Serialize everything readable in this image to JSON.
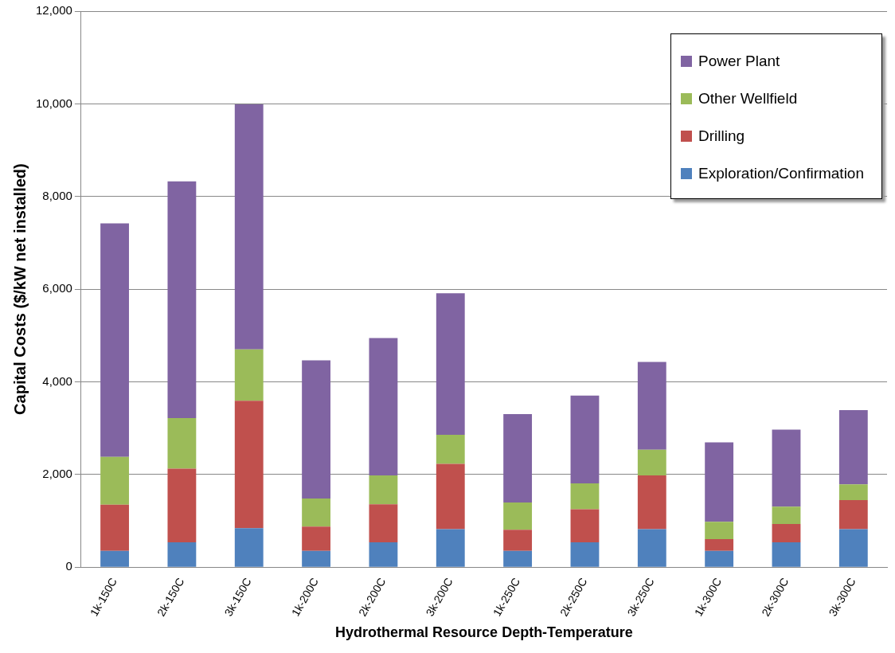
{
  "chart_data": {
    "type": "bar",
    "stacked": true,
    "xlabel": "Hydrothermal Resource Depth-Temperature",
    "ylabel": "Capital Costs ($/kW net installed)",
    "categories": [
      "1k-150C",
      "2k-150C",
      "3k-150C",
      "1k-200C",
      "2k-200C",
      "3k-200C",
      "1k-250C",
      "2k-250C",
      "3k-250C",
      "1k-300C",
      "2k-300C",
      "3k-300C"
    ],
    "series": [
      {
        "name": "Exploration/Confirmation",
        "color": "#4f81bd",
        "values": [
          350,
          536,
          840,
          350,
          536,
          820,
          350,
          536,
          820,
          350,
          536,
          820
        ]
      },
      {
        "name": "Drilling",
        "color": "#c0504d",
        "values": [
          1000,
          1590,
          2750,
          525,
          820,
          1410,
          455,
          715,
          1160,
          255,
          395,
          625
        ]
      },
      {
        "name": "Other Wellfield",
        "color": "#9bbb59",
        "values": [
          1030,
          1090,
          1110,
          605,
          625,
          625,
          590,
          555,
          555,
          375,
          375,
          340
        ]
      },
      {
        "name": "Power Plant",
        "color": "#8064a2",
        "values": [
          5040,
          5110,
          5290,
          2985,
          2965,
          3055,
          1910,
          1895,
          1895,
          1715,
          1660,
          1605
        ]
      }
    ],
    "ylim": [
      0,
      12000
    ],
    "yticks": [
      {
        "value": 0,
        "label": "0"
      },
      {
        "value": 2000,
        "label": "2,000"
      },
      {
        "value": 4000,
        "label": "4,000"
      },
      {
        "value": 6000,
        "label": "6,000"
      },
      {
        "value": 8000,
        "label": "8,000"
      },
      {
        "value": 10000,
        "label": "10,000"
      },
      {
        "value": 12000,
        "label": "12,000"
      }
    ],
    "grid": "y",
    "legend": "top right"
  }
}
